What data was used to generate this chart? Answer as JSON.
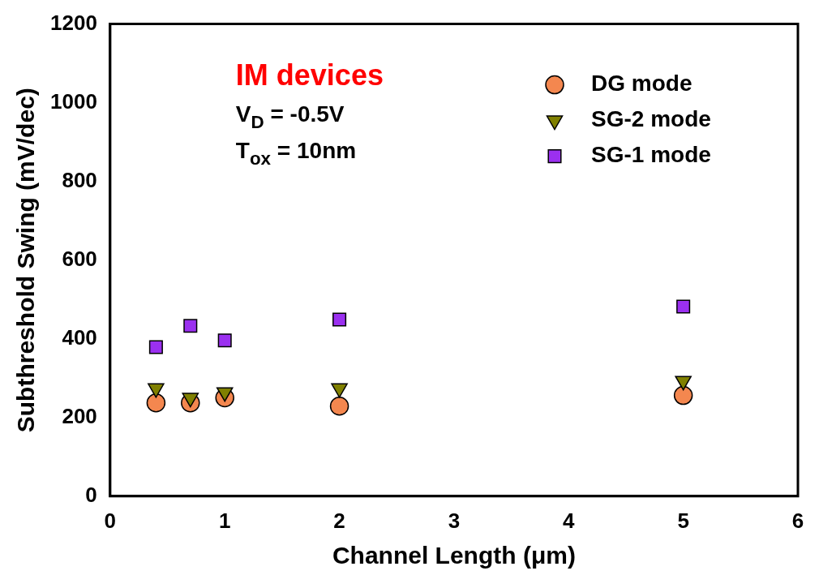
{
  "chart_data": {
    "type": "scatter",
    "xlabel": "Channel Length (μm)",
    "ylabel": "Subthreshold Swing (mV/dec)",
    "xlim": [
      0,
      6
    ],
    "xticks": [
      0,
      1,
      2,
      3,
      4,
      5,
      6
    ],
    "ylim": [
      0,
      1200
    ],
    "yticks": [
      0,
      200,
      400,
      600,
      800,
      1000,
      1200
    ],
    "x": [
      0.4,
      0.7,
      1,
      2,
      5
    ],
    "series": [
      {
        "name": "DG mode",
        "color": "#f4874f",
        "marker": "circle",
        "values": [
          237,
          237,
          250,
          229,
          256
        ]
      },
      {
        "name": "SG-2 mode",
        "color": "#808000",
        "marker": "triangle",
        "values": [
          274,
          250,
          264,
          274,
          293
        ]
      },
      {
        "name": "SG-1 mode",
        "color": "#9b30f0",
        "marker": "square",
        "values": [
          379,
          433,
          396,
          449,
          482
        ]
      }
    ],
    "annotations": [
      "IM devices",
      "V$_{D}$ = -0.5V",
      "T$_{ox}$ = 10nm"
    ],
    "legend": "top right",
    "grid": false
  }
}
